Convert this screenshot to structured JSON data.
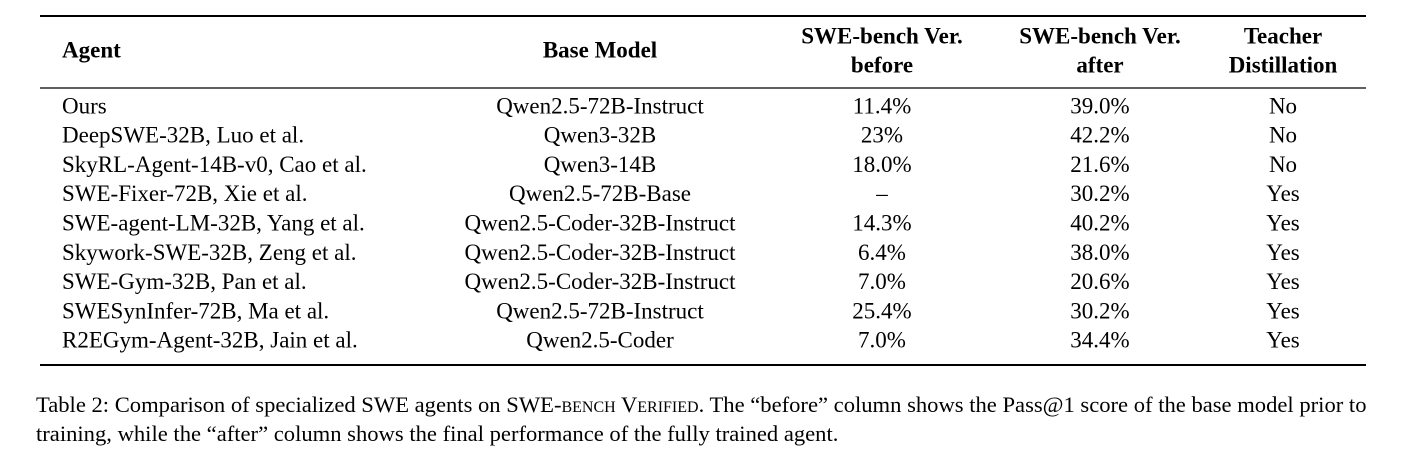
{
  "table": {
    "header": [
      [
        "Agent"
      ],
      [
        "Base Model"
      ],
      [
        "SWE-bench Ver.",
        "before"
      ],
      [
        "SWE-bench Ver.",
        "after"
      ],
      [
        "Teacher",
        "Distillation"
      ]
    ],
    "rows": [
      [
        "Ours",
        "Qwen2.5-72B-Instruct",
        "11.4%",
        "39.0%",
        "No"
      ],
      [
        "DeepSWE-32B, Luo et al.",
        "Qwen3-32B",
        "23%",
        "42.2%",
        "No"
      ],
      [
        "SkyRL-Agent-14B-v0, Cao et al.",
        "Qwen3-14B",
        "18.0%",
        "21.6%",
        "No"
      ],
      [
        "SWE-Fixer-72B, Xie et al.",
        "Qwen2.5-72B-Base",
        "–",
        "30.2%",
        "Yes"
      ],
      [
        "SWE-agent-LM-32B, Yang et al.",
        "Qwen2.5-Coder-32B-Instruct",
        "14.3%",
        "40.2%",
        "Yes"
      ],
      [
        "Skywork-SWE-32B, Zeng et al.",
        "Qwen2.5-Coder-32B-Instruct",
        "6.4%",
        "38.0%",
        "Yes"
      ],
      [
        "SWE-Gym-32B, Pan et al.",
        "Qwen2.5-Coder-32B-Instruct",
        "7.0%",
        "20.6%",
        "Yes"
      ],
      [
        "SWESynInfer-72B, Ma et al.",
        "Qwen2.5-72B-Instruct",
        "25.4%",
        "30.2%",
        "Yes"
      ],
      [
        "R2EGym-Agent-32B, Jain et al.",
        "Qwen2.5-Coder",
        "7.0%",
        "34.4%",
        "Yes"
      ]
    ]
  },
  "caption": {
    "prefix": "Table 2: Comparison of specialized SWE agents on ",
    "smallcaps": "SWE-bench Verified",
    "suffix": ". The “before” column shows the Pass@1 score of the base model prior to training, while the “after” column shows the final performance of the fully trained agent."
  }
}
